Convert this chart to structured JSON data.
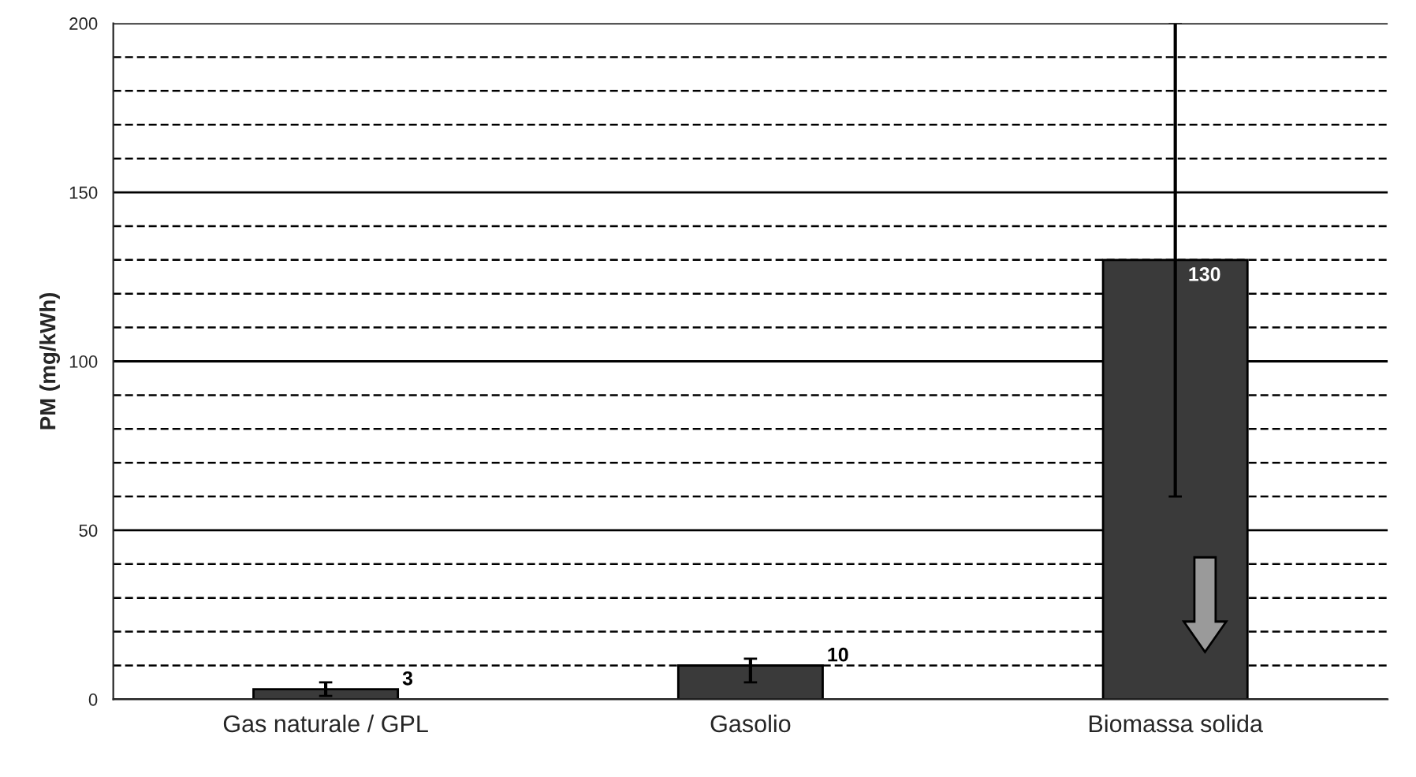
{
  "chart_data": {
    "type": "bar",
    "ylabel": "PM (mg/kWh)",
    "categories": [
      "Gas naturale / GPL",
      "Gasolio",
      "Biomassa solida"
    ],
    "values": [
      3,
      10,
      130
    ],
    "color": "#3a3a3a",
    "errors": [
      [
        1,
        5
      ],
      [
        5,
        12
      ],
      [
        60,
        200
      ]
    ],
    "data_labels": true,
    "ylim": [
      0,
      200
    ],
    "yticks": [
      0,
      {
        "value": 10,
        "label": null
      },
      {
        "value": 20,
        "label": null
      },
      {
        "value": 30,
        "label": null
      },
      {
        "value": 40,
        "label": null
      },
      50,
      {
        "value": 60,
        "label": null
      },
      {
        "value": 70,
        "label": null
      },
      {
        "value": 80,
        "label": null
      },
      {
        "value": 90,
        "label": null
      },
      100,
      {
        "value": 110,
        "label": null
      },
      {
        "value": 120,
        "label": null
      },
      {
        "value": 130,
        "label": null
      },
      {
        "value": 140,
        "label": null
      },
      150,
      {
        "value": 160,
        "label": null
      },
      {
        "value": 170,
        "label": null
      },
      {
        "value": 180,
        "label": null
      },
      {
        "value": 190,
        "label": null
      },
      200
    ],
    "grid": "y"
  }
}
